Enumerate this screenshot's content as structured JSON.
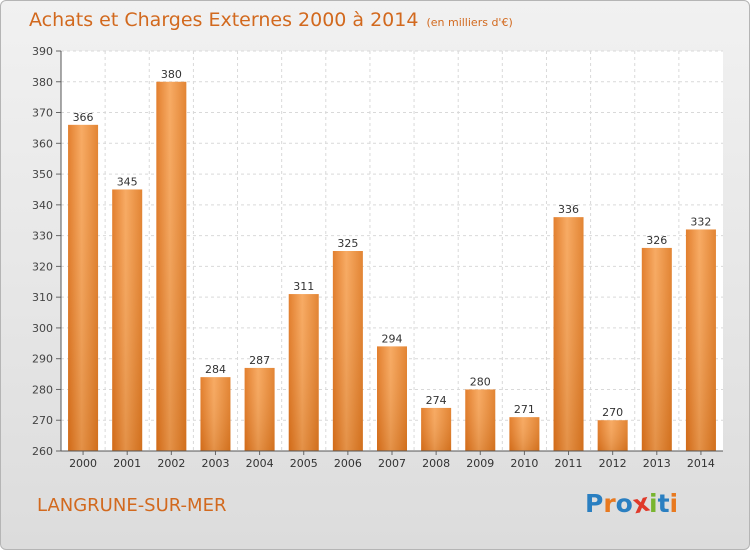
{
  "header": {
    "title": "Achats et Charges Externes 2000 à 2014",
    "subtitle": "(en milliers d'€)"
  },
  "footer": {
    "city": "LANGRUNE-SUR-MER",
    "logo_text": "Proxiti",
    "logo_letters": [
      {
        "char": "P",
        "color": "#2a7fc1"
      },
      {
        "char": "r",
        "color": "#e8791f"
      },
      {
        "char": "o",
        "color": "#2a7fc1"
      },
      {
        "char": "x",
        "color": "#e03a2a"
      },
      {
        "char": "i",
        "color": "#79b530"
      },
      {
        "char": "t",
        "color": "#2a7fc1"
      },
      {
        "char": "i",
        "color": "#e8791f"
      }
    ]
  },
  "chart_data": {
    "type": "bar",
    "categories": [
      "2000",
      "2001",
      "2002",
      "2003",
      "2004",
      "2005",
      "2006",
      "2007",
      "2008",
      "2009",
      "2010",
      "2011",
      "2012",
      "2013",
      "2014"
    ],
    "values": [
      366,
      345,
      380,
      284,
      287,
      311,
      325,
      294,
      274,
      280,
      271,
      336,
      270,
      326,
      332
    ],
    "title": "Achats et Charges Externes 2000 à 2014",
    "subtitle": "(en milliers d'€)",
    "xlabel": "",
    "ylabel": "",
    "ylim": [
      260,
      390
    ],
    "yticks": [
      260,
      270,
      280,
      290,
      300,
      310,
      320,
      330,
      340,
      350,
      360,
      370,
      380,
      390
    ],
    "grid": true,
    "bar_color": "#f0923a",
    "bar_color_dark": "#d46a12"
  }
}
